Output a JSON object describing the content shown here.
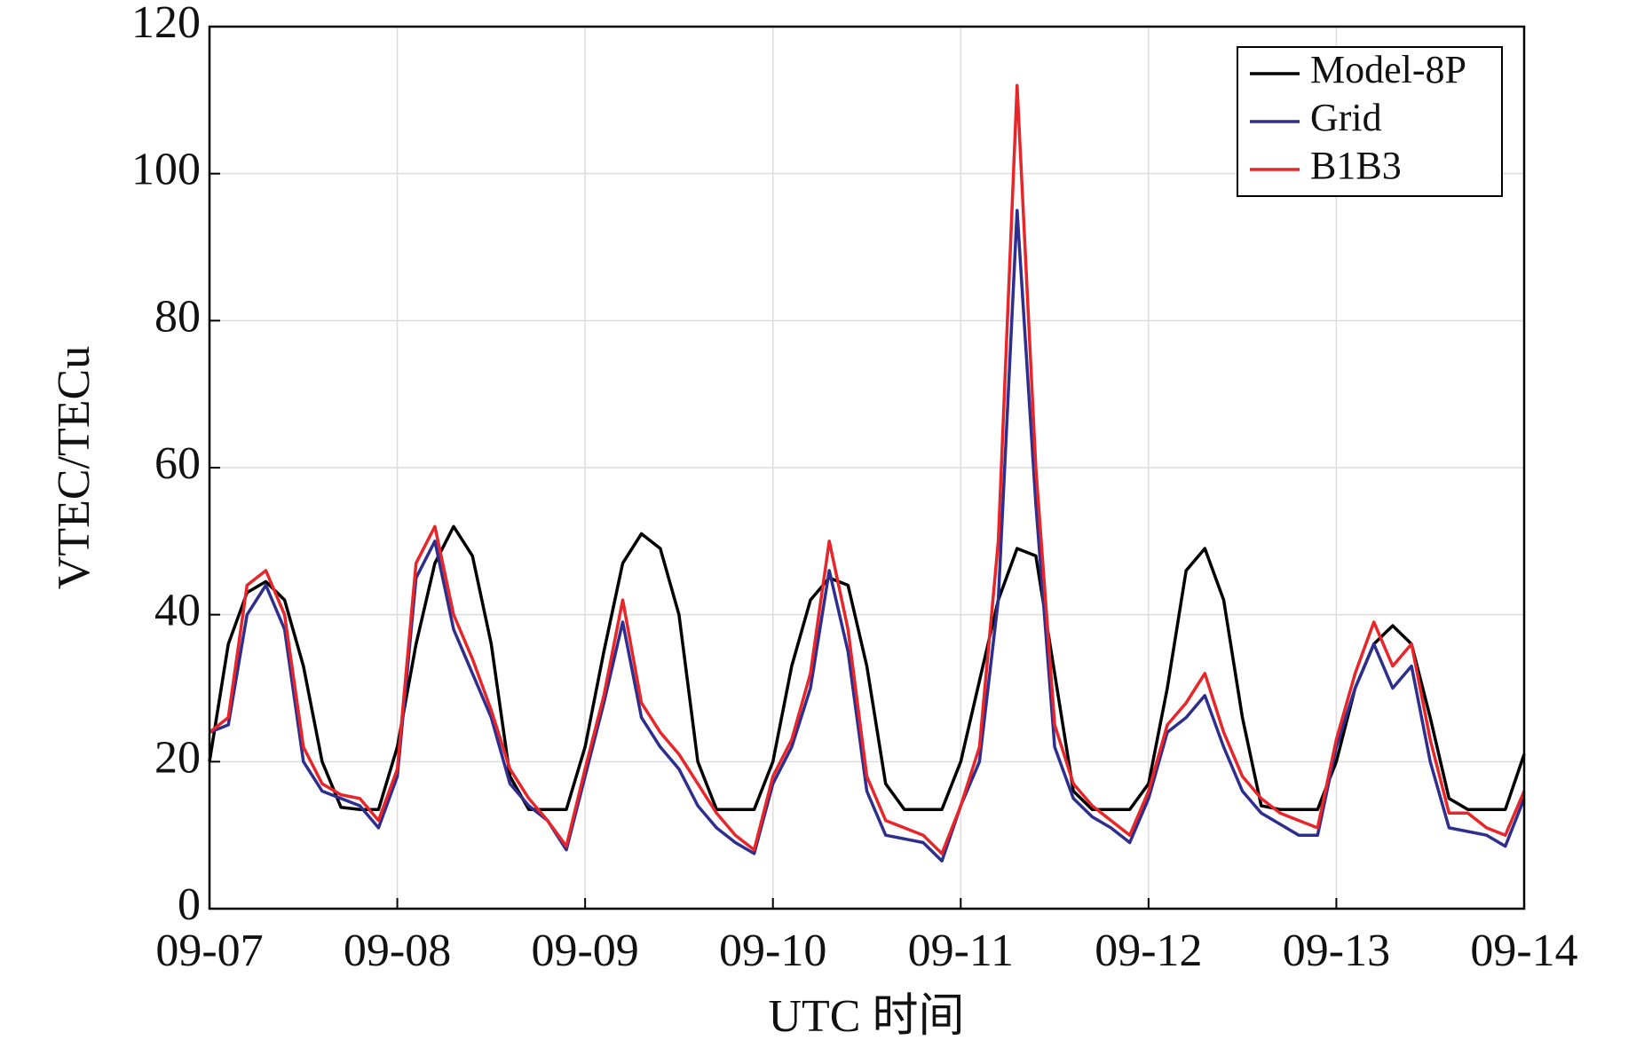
{
  "chart_data": {
    "type": "line",
    "xlabel": "UTC 时间",
    "ylabel": "VTEC/TECu",
    "x": [
      0,
      0.1,
      0.2,
      0.3,
      0.4,
      0.5,
      0.6,
      0.7,
      0.8,
      0.9,
      1,
      1.1,
      1.2,
      1.3,
      1.4,
      1.5,
      1.6,
      1.7,
      1.8,
      1.9,
      2,
      2.1,
      2.2,
      2.3,
      2.4,
      2.5,
      2.6,
      2.7,
      2.8,
      2.9,
      3,
      3.1,
      3.2,
      3.3,
      3.4,
      3.5,
      3.6,
      3.7,
      3.8,
      3.9,
      4,
      4.1,
      4.2,
      4.3,
      4.4,
      4.5,
      4.6,
      4.7,
      4.8,
      4.9,
      5,
      5.1,
      5.2,
      5.3,
      5.4,
      5.5,
      5.6,
      5.7,
      5.8,
      5.9,
      6,
      6.1,
      6.2,
      6.3,
      6.4,
      6.5,
      6.6,
      6.7,
      6.8,
      6.9,
      7
    ],
    "series": [
      {
        "name": "Model-8P",
        "color": "#000000",
        "values": [
          20,
          36,
          43,
          44.5,
          42,
          33,
          20,
          13.8,
          13.5,
          13.5,
          22,
          36,
          47,
          52,
          48,
          36,
          18,
          13.5,
          13.5,
          13.5,
          22,
          35,
          47,
          51,
          49,
          40,
          20,
          13.5,
          13.5,
          13.5,
          20,
          33,
          42,
          45,
          44,
          33,
          17,
          13.5,
          13.5,
          13.5,
          20,
          31,
          42,
          49,
          48,
          32,
          16,
          13.5,
          13.5,
          13.5,
          17,
          30,
          46,
          49,
          42,
          26,
          14,
          13.5,
          13.5,
          13.5,
          20,
          30,
          36,
          38.5,
          36,
          26,
          15,
          13.5,
          13.5,
          13.5,
          21
        ]
      },
      {
        "name": "Grid",
        "color": "#2e2e8f",
        "values": [
          24,
          25,
          40,
          44,
          38,
          20,
          16,
          15,
          14,
          11,
          18,
          45,
          50,
          38,
          32,
          26,
          17,
          14,
          12,
          8,
          18,
          28,
          39,
          26,
          22,
          19,
          14,
          11,
          9,
          7.5,
          17,
          22,
          30,
          46,
          35,
          16,
          10,
          9.5,
          9,
          6.5,
          14,
          20,
          42,
          95,
          55,
          22,
          15,
          12.5,
          11,
          9,
          15,
          24,
          26,
          29,
          22,
          16,
          13,
          11.5,
          10,
          10,
          22,
          30,
          36,
          30,
          33,
          20,
          11,
          10.5,
          10,
          8.5,
          15
        ]
      },
      {
        "name": "B1B3",
        "color": "#e8262a",
        "values": [
          24,
          26,
          44,
          46,
          40,
          22,
          17,
          15.5,
          15,
          12,
          19,
          47,
          52,
          40,
          34,
          27,
          19,
          15,
          12,
          8.5,
          19,
          29,
          42,
          28,
          24,
          21,
          17,
          13,
          10,
          8,
          18,
          23,
          32,
          50,
          38,
          18,
          12,
          11,
          10,
          7.5,
          14,
          22,
          50,
          112,
          60,
          25,
          17,
          14,
          12,
          10,
          16,
          25,
          28,
          32,
          24,
          18,
          15,
          13,
          12,
          11,
          23,
          32,
          39,
          33,
          36,
          23,
          13,
          13,
          11,
          10,
          16
        ]
      }
    ],
    "xlim": [
      0,
      7
    ],
    "xticks": [
      {
        "value": 0,
        "label": "09-07"
      },
      {
        "value": 1,
        "label": "09-08"
      },
      {
        "value": 2,
        "label": "09-09"
      },
      {
        "value": 3,
        "label": "09-10"
      },
      {
        "value": 4,
        "label": "09-11"
      },
      {
        "value": 5,
        "label": "09-12"
      },
      {
        "value": 6,
        "label": "09-13"
      },
      {
        "value": 7,
        "label": "09-14"
      }
    ],
    "ylim": [
      0,
      120
    ],
    "yticks": [
      0,
      20,
      40,
      60,
      80,
      100,
      120
    ],
    "grid": true,
    "legend": "upper right"
  }
}
